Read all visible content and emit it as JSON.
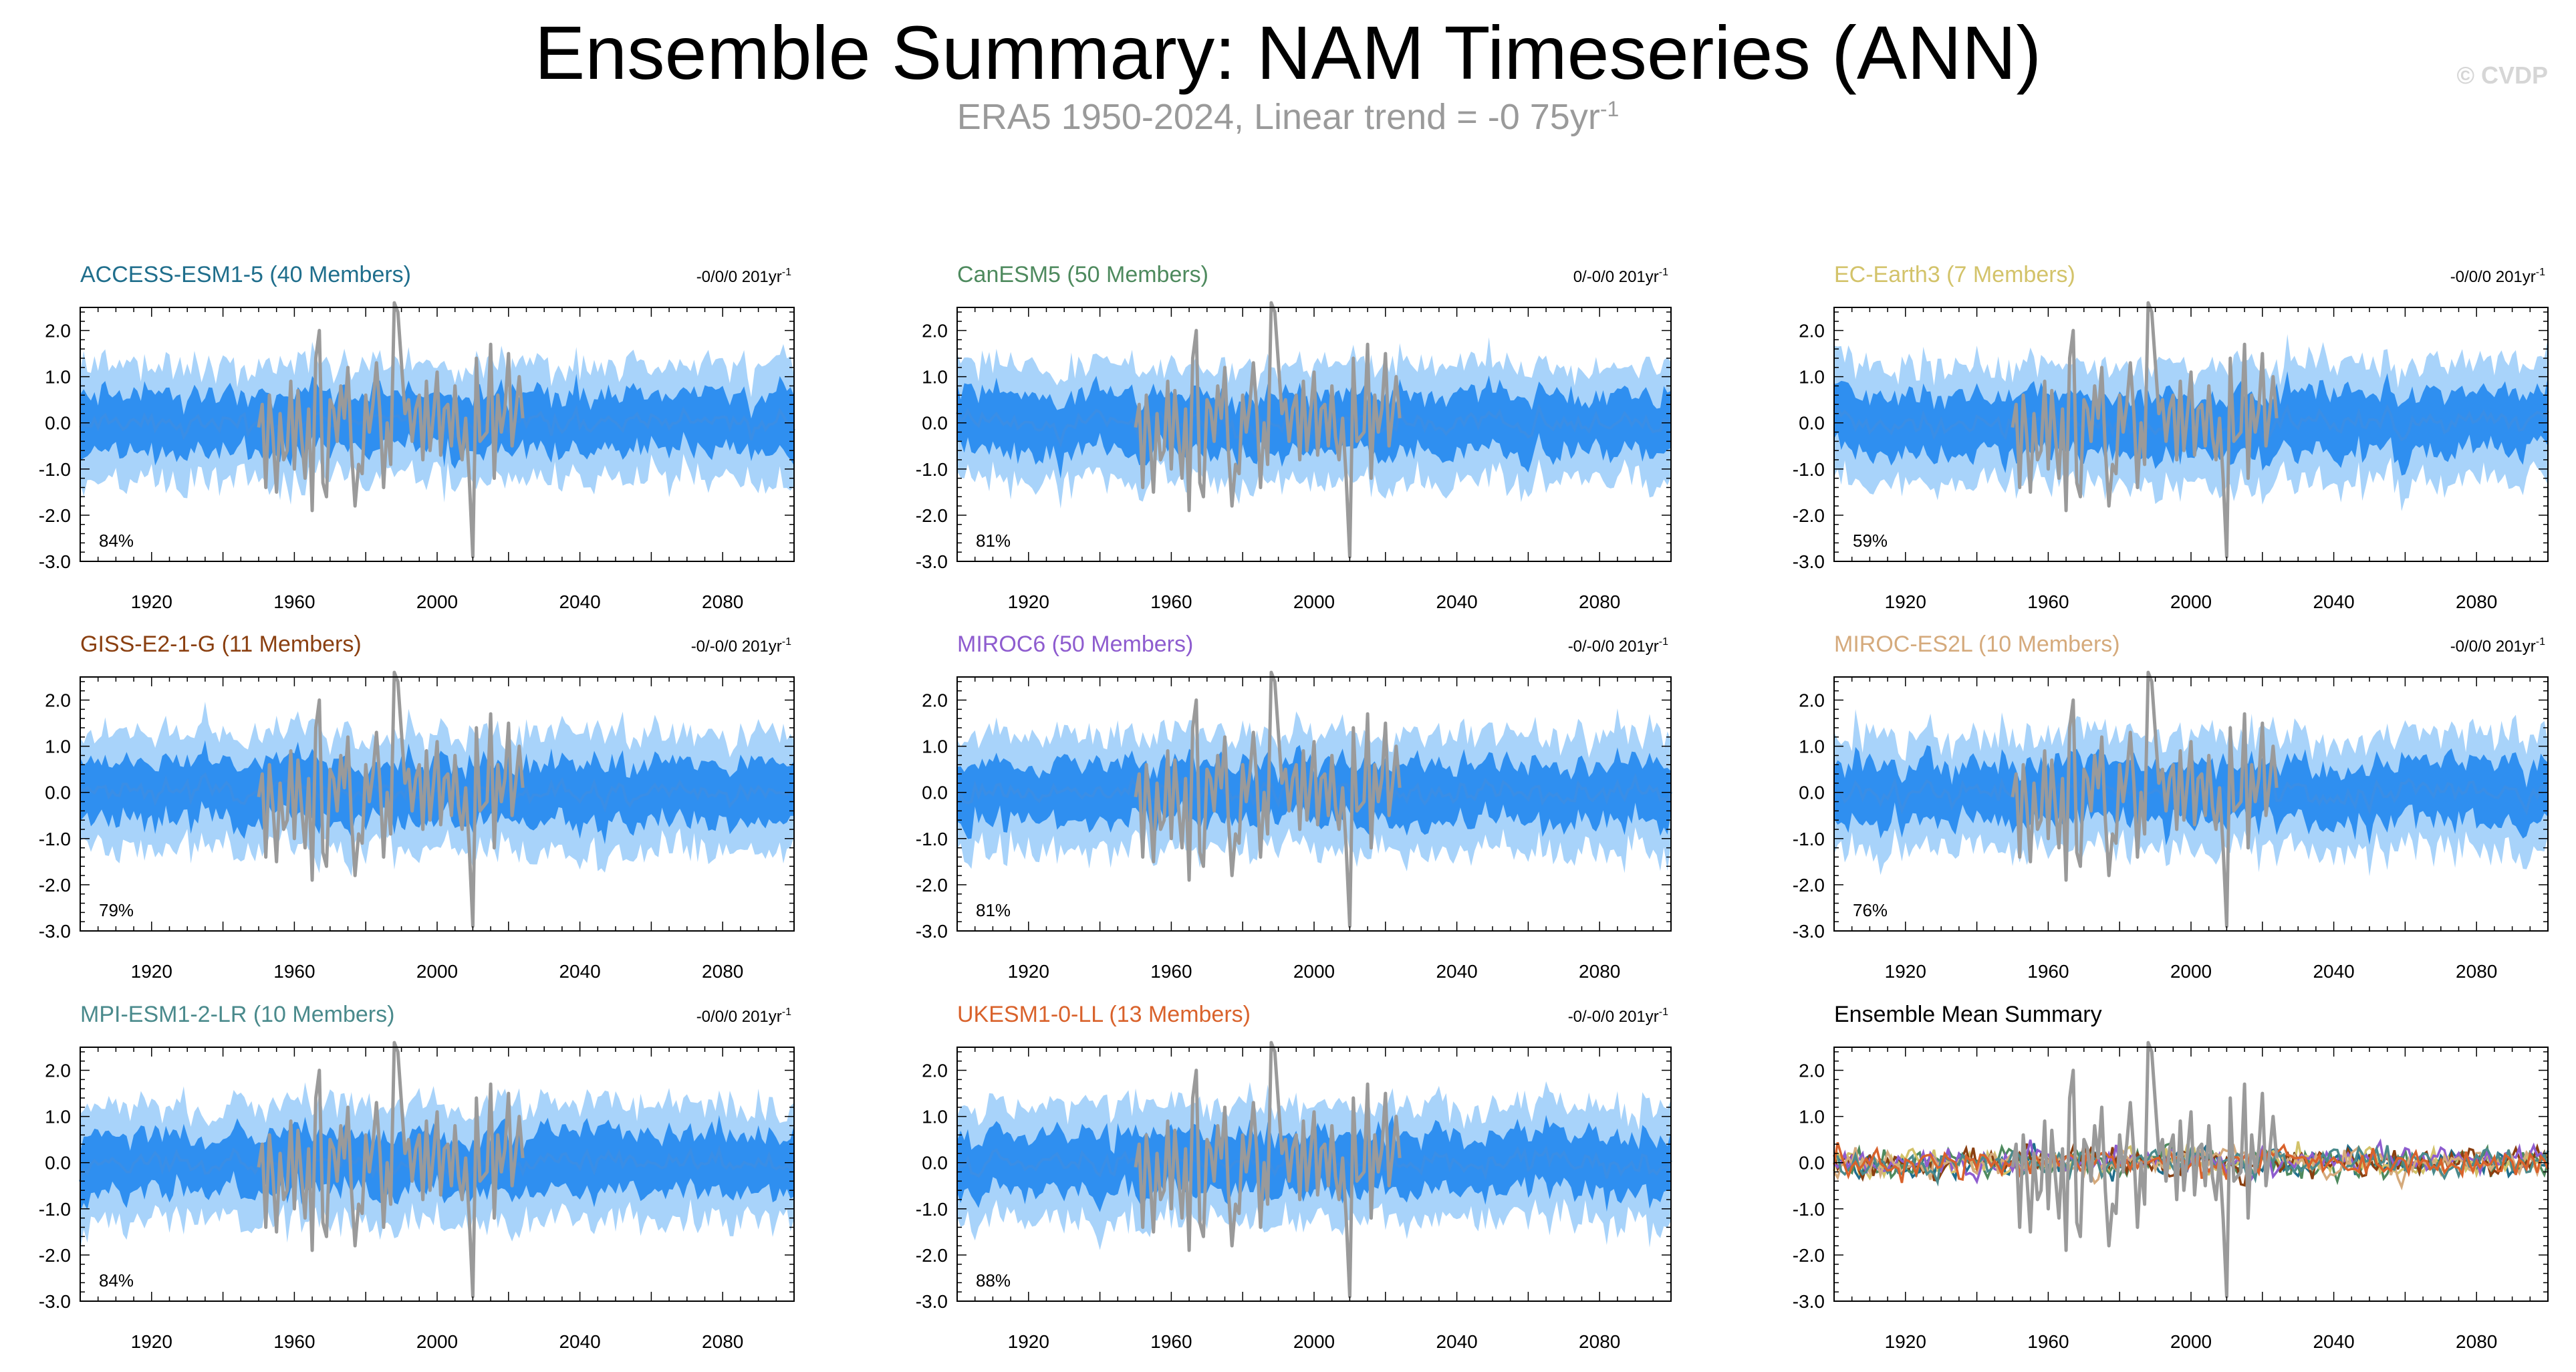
{
  "title": "Ensemble Summary: NAM Timeseries (ANN)",
  "subtitle": {
    "text": "ERA5 1950-2024, Linear trend = -0 75yr",
    "sup": "-1"
  },
  "copyright": "© CVDP",
  "colors": {
    "obs": "#9a9a9a",
    "mean_line": "#3a8ee6",
    "inner_band": "#2f8ff0",
    "outer_band": "#a8d3fa",
    "axis": "#000000"
  },
  "chart_data": [
    {
      "type": "area",
      "title": "ACCESS-ESM1-5 (40 Members)",
      "title_color": "#1f6e8c",
      "trend": "-0/0/0 201yr",
      "trend_sup": "-1",
      "stat": "84%",
      "seed": 11,
      "xlim": [
        1900,
        2100
      ],
      "ylim": [
        -3.0,
        2.5
      ],
      "x_ticks": [
        "1920",
        "1960",
        "2000",
        "2040",
        "2080"
      ],
      "y_ticks": [
        "2.0",
        "1.0",
        "0.0",
        "-1.0",
        "-2.0",
        "-3.0"
      ]
    },
    {
      "type": "area",
      "title": "CanESM5 (50 Members)",
      "title_color": "#4e8a5e",
      "trend": "0/-0/0 201yr",
      "trend_sup": "-1",
      "stat": "81%",
      "seed": 23,
      "xlim": [
        1900,
        2100
      ],
      "ylim": [
        -3.0,
        2.5
      ],
      "x_ticks": [
        "1920",
        "1960",
        "2000",
        "2040",
        "2080"
      ],
      "y_ticks": [
        "2.0",
        "1.0",
        "0.0",
        "-1.0",
        "-2.0",
        "-3.0"
      ]
    },
    {
      "type": "area",
      "title": "EC-Earth3 (7 Members)",
      "title_color": "#d3c36a",
      "trend": "-0/0/0 201yr",
      "trend_sup": "-1",
      "stat": "59%",
      "seed": 37,
      "xlim": [
        1900,
        2100
      ],
      "ylim": [
        -3.0,
        2.5
      ],
      "x_ticks": [
        "1920",
        "1960",
        "2000",
        "2040",
        "2080"
      ],
      "y_ticks": [
        "2.0",
        "1.0",
        "0.0",
        "-1.0",
        "-2.0",
        "-3.0"
      ]
    },
    {
      "type": "area",
      "title": "GISS-E2-1-G (11 Members)",
      "title_color": "#8a3f10",
      "trend": "-0/-0/0 201yr",
      "trend_sup": "-1",
      "stat": "79%",
      "seed": 41,
      "xlim": [
        1900,
        2100
      ],
      "ylim": [
        -3.0,
        2.5
      ],
      "x_ticks": [
        "1920",
        "1960",
        "2000",
        "2040",
        "2080"
      ],
      "y_ticks": [
        "2.0",
        "1.0",
        "0.0",
        "-1.0",
        "-2.0",
        "-3.0"
      ]
    },
    {
      "type": "area",
      "title": "MIROC6 (50 Members)",
      "title_color": "#8e5ccf",
      "trend": "-0/-0/0 201yr",
      "trend_sup": "-1",
      "stat": "81%",
      "seed": 53,
      "xlim": [
        1900,
        2100
      ],
      "ylim": [
        -3.0,
        2.5
      ],
      "x_ticks": [
        "1920",
        "1960",
        "2000",
        "2040",
        "2080"
      ],
      "y_ticks": [
        "2.0",
        "1.0",
        "0.0",
        "-1.0",
        "-2.0",
        "-3.0"
      ]
    },
    {
      "type": "area",
      "title": "MIROC-ES2L (10 Members)",
      "title_color": "#d5aa7c",
      "trend": "-0/0/0 201yr",
      "trend_sup": "-1",
      "stat": "76%",
      "seed": 67,
      "xlim": [
        1900,
        2100
      ],
      "ylim": [
        -3.0,
        2.5
      ],
      "x_ticks": [
        "1920",
        "1960",
        "2000",
        "2040",
        "2080"
      ],
      "y_ticks": [
        "2.0",
        "1.0",
        "0.0",
        "-1.0",
        "-2.0",
        "-3.0"
      ]
    },
    {
      "type": "area",
      "title": "MPI-ESM1-2-LR (10 Members)",
      "title_color": "#4a8a8c",
      "trend": "-0/0/0 201yr",
      "trend_sup": "-1",
      "stat": "84%",
      "seed": 71,
      "xlim": [
        1900,
        2100
      ],
      "ylim": [
        -3.0,
        2.5
      ],
      "x_ticks": [
        "1920",
        "1960",
        "2000",
        "2040",
        "2080"
      ],
      "y_ticks": [
        "2.0",
        "1.0",
        "0.0",
        "-1.0",
        "-2.0",
        "-3.0"
      ]
    },
    {
      "type": "area",
      "title": "UKESM1-0-LL (13 Members)",
      "title_color": "#d9622b",
      "trend": "-0/-0/0 201yr",
      "trend_sup": "-1",
      "stat": "88%",
      "seed": 83,
      "xlim": [
        1900,
        2100
      ],
      "ylim": [
        -3.0,
        2.5
      ],
      "x_ticks": [
        "1920",
        "1960",
        "2000",
        "2040",
        "2080"
      ],
      "y_ticks": [
        "2.0",
        "1.0",
        "0.0",
        "-1.0",
        "-2.0",
        "-3.0"
      ]
    },
    {
      "type": "line",
      "title": "Ensemble Mean Summary",
      "title_color": "#000000",
      "trend": "",
      "trend_sup": "",
      "stat": "",
      "seed": 97,
      "xlim": [
        1900,
        2100
      ],
      "ylim": [
        -3.0,
        2.5
      ],
      "x_ticks": [
        "1920",
        "1960",
        "2000",
        "2040",
        "2080"
      ],
      "y_ticks": [
        "2.0",
        "1.0",
        "0.0",
        "-1.0",
        "-2.0",
        "-3.0"
      ],
      "series_colors": [
        "#1f6e8c",
        "#4e8a5e",
        "#d3c36a",
        "#8a3f10",
        "#8e5ccf",
        "#d5aa7c",
        "#4a8a8c",
        "#d9622b"
      ]
    }
  ],
  "observation": {
    "name": "ERA5",
    "years": [
      1950,
      1951,
      1952,
      1953,
      1954,
      1955,
      1956,
      1957,
      1958,
      1959,
      1960,
      1961,
      1962,
      1963,
      1964,
      1965,
      1966,
      1967,
      1968,
      1969,
      1970,
      1971,
      1972,
      1973,
      1974,
      1975,
      1976,
      1977,
      1978,
      1979,
      1980,
      1981,
      1982,
      1983,
      1984,
      1985,
      1986,
      1987,
      1988,
      1989,
      1990,
      1991,
      1992,
      1993,
      1994,
      1995,
      1996,
      1997,
      1998,
      1999,
      2000,
      2001,
      2002,
      2003,
      2004,
      2005,
      2006,
      2007,
      2008,
      2009,
      2010,
      2011,
      2012,
      2013,
      2014,
      2015,
      2016,
      2017,
      2018,
      2019,
      2020,
      2021,
      2022,
      2023,
      2024
    ],
    "values": [
      -0.1,
      0.4,
      -1.4,
      0.6,
      -0.3,
      -1.5,
      0.2,
      -0.8,
      -0.6,
      0.9,
      -1.0,
      0.7,
      -0.3,
      -1.2,
      0.3,
      -1.9,
      1.4,
      2.0,
      -1.3,
      -1.6,
      0.5,
      0.3,
      -0.4,
      0.8,
      0.1,
      1.2,
      -0.6,
      -1.8,
      -0.9,
      -1.1,
      0.6,
      -0.2,
      0.4,
      1.3,
      0.2,
      -1.4,
      0.0,
      -0.9,
      2.6,
      2.4,
      1.3,
      0.2,
      0.5,
      -0.4,
      0.3,
      0.6,
      -0.8,
      0.9,
      -0.6,
      0.2,
      1.1,
      -0.7,
      0.3,
      0.4,
      -0.5,
      0.8,
      -0.3,
      -0.8,
      0.1,
      -1.2,
      -2.9,
      1.4,
      -0.4,
      -0.3,
      -0.2,
      1.7,
      -1.2,
      0.6,
      -0.2,
      0.3,
      1.5,
      -0.5,
      0.2,
      1.0,
      0.1
    ]
  }
}
